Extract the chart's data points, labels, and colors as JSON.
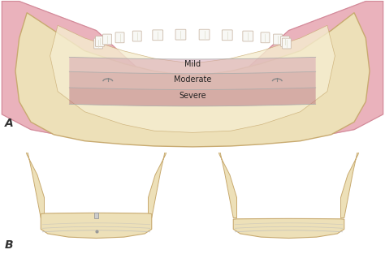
{
  "bg_color": "#ffffff",
  "label_A": "A",
  "label_B": "B",
  "mild_label": "Mild",
  "moderate_label": "Moderate",
  "severe_label": "Severe",
  "bone_color": "#ede0b8",
  "bone_color2": "#e8d8a8",
  "bone_outline": "#c8aa70",
  "bone_inner": "#f5edd0",
  "muscle_color": "#e8aab5",
  "muscle_outline": "#d08898",
  "mild_color": "#d4a0b0",
  "moderate_color": "#c48898",
  "severe_color": "#b87080",
  "zone_alpha": 0.5,
  "teeth_color": "#f8f8f5",
  "teeth_outline": "#ccbbaa",
  "label_fontsize": 9,
  "zone_fontsize": 7,
  "line_color": "#bbbbbb",
  "implant_color": "#cccccc",
  "implant_outline": "#999999"
}
